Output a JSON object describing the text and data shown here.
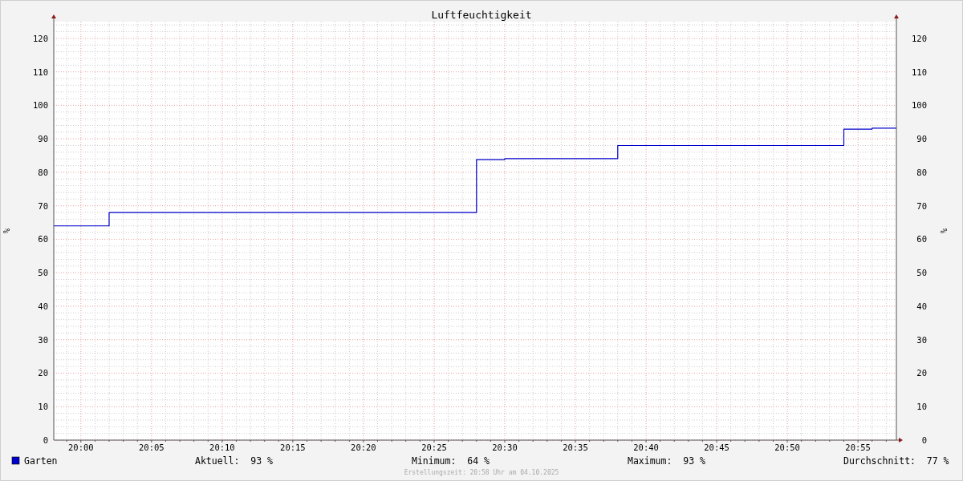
{
  "chart_data": {
    "type": "step",
    "title": "Luftfeuchtigkeit",
    "ylabel": "%",
    "y2label": "%",
    "x": [
      19.968,
      20.0333,
      20.4667,
      20.5,
      20.6333,
      20.9,
      20.9333,
      20.962
    ],
    "series": [
      {
        "name": "Garten",
        "color": "#0000cc",
        "values": [
          64,
          68,
          83.8,
          84.1,
          88,
          92.9,
          93.2,
          93.2
        ]
      }
    ],
    "xlim": [
      19.968,
      20.962
    ],
    "xticks": [
      {
        "value": 19.9833,
        "label": null
      },
      {
        "value": 20,
        "label": "20:00"
      },
      {
        "value": 20.0167,
        "label": null
      },
      {
        "value": 20.0333,
        "label": null
      },
      {
        "value": 20.05,
        "label": null
      },
      {
        "value": 20.0667,
        "label": null
      },
      {
        "value": 20.0833,
        "label": "20:05"
      },
      {
        "value": 20.1,
        "label": null
      },
      {
        "value": 20.1167,
        "label": null
      },
      {
        "value": 20.1333,
        "label": null
      },
      {
        "value": 20.15,
        "label": null
      },
      {
        "value": 20.1667,
        "label": "20:10"
      },
      {
        "value": 20.1833,
        "label": null
      },
      {
        "value": 20.2,
        "label": null
      },
      {
        "value": 20.2167,
        "label": null
      },
      {
        "value": 20.2333,
        "label": null
      },
      {
        "value": 20.25,
        "label": "20:15"
      },
      {
        "value": 20.2667,
        "label": null
      },
      {
        "value": 20.2833,
        "label": null
      },
      {
        "value": 20.3,
        "label": null
      },
      {
        "value": 20.3167,
        "label": null
      },
      {
        "value": 20.3333,
        "label": "20:20"
      },
      {
        "value": 20.35,
        "label": null
      },
      {
        "value": 20.3667,
        "label": null
      },
      {
        "value": 20.3833,
        "label": null
      },
      {
        "value": 20.4,
        "label": null
      },
      {
        "value": 20.4167,
        "label": "20:25"
      },
      {
        "value": 20.4333,
        "label": null
      },
      {
        "value": 20.45,
        "label": null
      },
      {
        "value": 20.4667,
        "label": null
      },
      {
        "value": 20.4833,
        "label": null
      },
      {
        "value": 20.5,
        "label": "20:30"
      },
      {
        "value": 20.5167,
        "label": null
      },
      {
        "value": 20.5333,
        "label": null
      },
      {
        "value": 20.55,
        "label": null
      },
      {
        "value": 20.5667,
        "label": null
      },
      {
        "value": 20.5833,
        "label": "20:35"
      },
      {
        "value": 20.6,
        "label": null
      },
      {
        "value": 20.6167,
        "label": null
      },
      {
        "value": 20.6333,
        "label": null
      },
      {
        "value": 20.65,
        "label": null
      },
      {
        "value": 20.6667,
        "label": "20:40"
      },
      {
        "value": 20.6833,
        "label": null
      },
      {
        "value": 20.7,
        "label": null
      },
      {
        "value": 20.7167,
        "label": null
      },
      {
        "value": 20.7333,
        "label": null
      },
      {
        "value": 20.75,
        "label": "20:45"
      },
      {
        "value": 20.7667,
        "label": null
      },
      {
        "value": 20.7833,
        "label": null
      },
      {
        "value": 20.8,
        "label": null
      },
      {
        "value": 20.8167,
        "label": null
      },
      {
        "value": 20.8333,
        "label": "20:50"
      },
      {
        "value": 20.85,
        "label": null
      },
      {
        "value": 20.8667,
        "label": null
      },
      {
        "value": 20.8833,
        "label": null
      },
      {
        "value": 20.9,
        "label": null
      },
      {
        "value": 20.9167,
        "label": "20:55"
      },
      {
        "value": 20.9333,
        "label": null
      },
      {
        "value": 20.95,
        "label": null
      }
    ],
    "ylim": [
      0,
      125
    ],
    "yticks": [
      0,
      {
        "value": 2,
        "label": null
      },
      {
        "value": 4,
        "label": null
      },
      {
        "value": 6,
        "label": null
      },
      {
        "value": 8,
        "label": null
      },
      10,
      {
        "value": 12,
        "label": null
      },
      {
        "value": 14,
        "label": null
      },
      {
        "value": 16,
        "label": null
      },
      {
        "value": 18,
        "label": null
      },
      20,
      {
        "value": 22,
        "label": null
      },
      {
        "value": 24,
        "label": null
      },
      {
        "value": 26,
        "label": null
      },
      {
        "value": 28,
        "label": null
      },
      30,
      {
        "value": 32,
        "label": null
      },
      {
        "value": 34,
        "label": null
      },
      {
        "value": 36,
        "label": null
      },
      {
        "value": 38,
        "label": null
      },
      40,
      {
        "value": 42,
        "label": null
      },
      {
        "value": 44,
        "label": null
      },
      {
        "value": 46,
        "label": null
      },
      {
        "value": 48,
        "label": null
      },
      50,
      {
        "value": 52,
        "label": null
      },
      {
        "value": 54,
        "label": null
      },
      {
        "value": 56,
        "label": null
      },
      {
        "value": 58,
        "label": null
      },
      60,
      {
        "value": 62,
        "label": null
      },
      {
        "value": 64,
        "label": null
      },
      {
        "value": 66,
        "label": null
      },
      {
        "value": 68,
        "label": null
      },
      70,
      {
        "value": 72,
        "label": null
      },
      {
        "value": 74,
        "label": null
      },
      {
        "value": 76,
        "label": null
      },
      {
        "value": 78,
        "label": null
      },
      80,
      {
        "value": 82,
        "label": null
      },
      {
        "value": 84,
        "label": null
      },
      {
        "value": 86,
        "label": null
      },
      {
        "value": 88,
        "label": null
      },
      90,
      {
        "value": 92,
        "label": null
      },
      {
        "value": 94,
        "label": null
      },
      {
        "value": 96,
        "label": null
      },
      {
        "value": 98,
        "label": null
      },
      100,
      {
        "value": 102,
        "label": null
      },
      {
        "value": 104,
        "label": null
      },
      {
        "value": 106,
        "label": null
      },
      {
        "value": 108,
        "label": null
      },
      110,
      {
        "value": 112,
        "label": null
      },
      {
        "value": 114,
        "label": null
      },
      {
        "value": 116,
        "label": null
      },
      {
        "value": 118,
        "label": null
      },
      120,
      {
        "value": 122,
        "label": null
      },
      {
        "value": 124,
        "label": null
      }
    ],
    "y2lim": [
      0,
      125
    ],
    "y2ticks": [
      0,
      10,
      20,
      30,
      40,
      50,
      60,
      70,
      80,
      90,
      100,
      110,
      120
    ],
    "grid": true,
    "legend": "bottom",
    "annotations": [
      "Aktuell:  93 %",
      "Minimum:  64 %",
      "Maximum:  93 %",
      "Durchschnitt:  77 %",
      "Erstellungszeit: 20:58 Uhr am 04.10.2025"
    ]
  }
}
